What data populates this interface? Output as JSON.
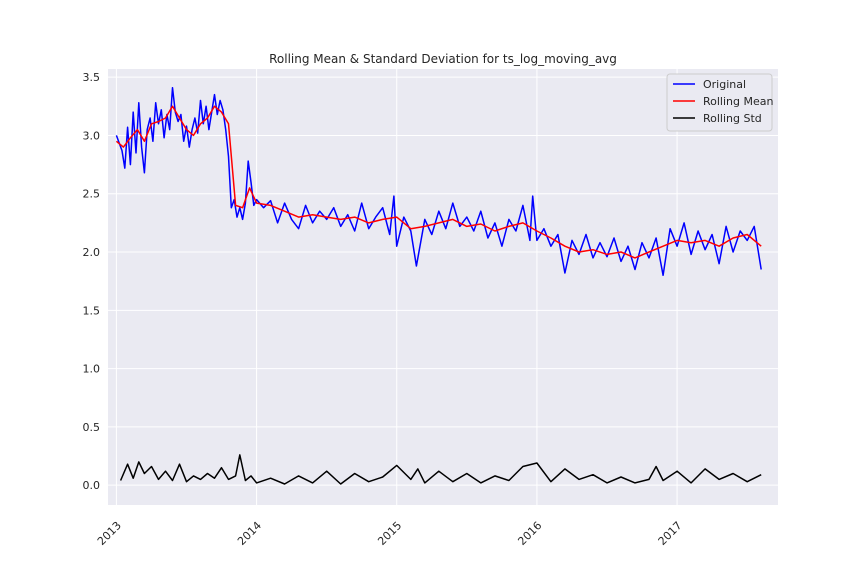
{
  "chart_data": {
    "type": "line",
    "title": "Rolling Mean & Standard Deviation for ts_log_moving_avg",
    "xlabel": "",
    "ylabel": "",
    "xlim": [
      2012.94,
      2017.72
    ],
    "ylim": [
      -0.17,
      3.57
    ],
    "x_ticks": [
      {
        "value": 2013,
        "label": "2013"
      },
      {
        "value": 2014,
        "label": "2014"
      },
      {
        "value": 2015,
        "label": "2015"
      },
      {
        "value": 2016,
        "label": "2016"
      },
      {
        "value": 2017,
        "label": "2017"
      }
    ],
    "y_ticks": [
      {
        "value": 0.0,
        "label": "0.0"
      },
      {
        "value": 0.5,
        "label": "0.5"
      },
      {
        "value": 1.0,
        "label": "1.0"
      },
      {
        "value": 1.5,
        "label": "1.5"
      },
      {
        "value": 2.0,
        "label": "2.0"
      },
      {
        "value": 2.5,
        "label": "2.5"
      },
      {
        "value": 3.0,
        "label": "3.0"
      },
      {
        "value": 3.5,
        "label": "3.5"
      }
    ],
    "grid": true,
    "legend_position": "top-right",
    "background": "#eaeaf2",
    "series": [
      {
        "name": "Original",
        "color": "#0000ff",
        "x": [
          2013.0,
          2013.04,
          2013.06,
          2013.08,
          2013.1,
          2013.12,
          2013.14,
          2013.16,
          2013.18,
          2013.2,
          2013.22,
          2013.24,
          2013.26,
          2013.28,
          2013.3,
          2013.32,
          2013.34,
          2013.36,
          2013.38,
          2013.4,
          2013.42,
          2013.44,
          2013.46,
          2013.48,
          2013.5,
          2013.52,
          2013.54,
          2013.56,
          2013.58,
          2013.6,
          2013.62,
          2013.64,
          2013.66,
          2013.68,
          2013.7,
          2013.72,
          2013.74,
          2013.76,
          2013.78,
          2013.8,
          2013.82,
          2013.84,
          2013.86,
          2013.88,
          2013.9,
          2013.92,
          2013.94,
          2013.96,
          2013.98,
          2014.0,
          2014.05,
          2014.1,
          2014.15,
          2014.2,
          2014.25,
          2014.3,
          2014.35,
          2014.4,
          2014.45,
          2014.5,
          2014.55,
          2014.6,
          2014.65,
          2014.7,
          2014.75,
          2014.8,
          2014.85,
          2014.9,
          2014.95,
          2014.98,
          2015.0,
          2015.05,
          2015.1,
          2015.14,
          2015.2,
          2015.25,
          2015.3,
          2015.35,
          2015.4,
          2015.45,
          2015.5,
          2015.55,
          2015.6,
          2015.65,
          2015.7,
          2015.75,
          2015.8,
          2015.85,
          2015.9,
          2015.95,
          2015.97,
          2016.0,
          2016.05,
          2016.1,
          2016.15,
          2016.2,
          2016.25,
          2016.3,
          2016.35,
          2016.4,
          2016.45,
          2016.5,
          2016.55,
          2016.6,
          2016.65,
          2016.7,
          2016.75,
          2016.8,
          2016.85,
          2016.9,
          2016.95,
          2017.0,
          2017.05,
          2017.1,
          2017.15,
          2017.2,
          2017.25,
          2017.3,
          2017.35,
          2017.4,
          2017.45,
          2017.5,
          2017.55,
          2017.6
        ],
        "y": [
          3.0,
          2.87,
          2.72,
          3.07,
          2.75,
          3.2,
          2.85,
          3.28,
          2.9,
          2.68,
          3.05,
          3.15,
          2.95,
          3.28,
          3.1,
          3.22,
          2.98,
          3.18,
          3.05,
          3.41,
          3.2,
          3.12,
          3.18,
          2.95,
          3.08,
          2.9,
          3.05,
          3.15,
          3.02,
          3.3,
          3.1,
          3.25,
          3.05,
          3.2,
          3.35,
          3.18,
          3.3,
          3.22,
          3.05,
          2.82,
          2.38,
          2.45,
          2.3,
          2.38,
          2.28,
          2.42,
          2.78,
          2.6,
          2.4,
          2.45,
          2.38,
          2.44,
          2.25,
          2.42,
          2.28,
          2.2,
          2.4,
          2.25,
          2.35,
          2.28,
          2.38,
          2.22,
          2.32,
          2.18,
          2.42,
          2.2,
          2.3,
          2.38,
          2.15,
          2.48,
          2.05,
          2.3,
          2.18,
          1.88,
          2.28,
          2.15,
          2.35,
          2.2,
          2.42,
          2.22,
          2.3,
          2.18,
          2.35,
          2.12,
          2.25,
          2.05,
          2.28,
          2.18,
          2.4,
          2.1,
          2.48,
          2.1,
          2.2,
          2.05,
          2.15,
          1.82,
          2.1,
          1.98,
          2.15,
          1.95,
          2.08,
          1.96,
          2.12,
          1.92,
          2.05,
          1.85,
          2.08,
          1.95,
          2.12,
          1.8,
          2.2,
          2.05,
          2.25,
          1.98,
          2.18,
          2.02,
          2.15,
          1.9,
          2.22,
          2.0,
          2.18,
          2.1,
          2.22,
          1.85
        ]
      },
      {
        "name": "Rolling Mean",
        "color": "#ff0000",
        "x": [
          2013.0,
          2013.05,
          2013.1,
          2013.15,
          2013.2,
          2013.25,
          2013.3,
          2013.35,
          2013.4,
          2013.45,
          2013.5,
          2013.55,
          2013.6,
          2013.65,
          2013.7,
          2013.75,
          2013.8,
          2013.85,
          2013.9,
          2013.95,
          2014.0,
          2014.1,
          2014.2,
          2014.3,
          2014.4,
          2014.5,
          2014.6,
          2014.7,
          2014.8,
          2014.9,
          2015.0,
          2015.1,
          2015.2,
          2015.3,
          2015.4,
          2015.5,
          2015.6,
          2015.7,
          2015.8,
          2015.9,
          2016.0,
          2016.1,
          2016.2,
          2016.3,
          2016.4,
          2016.5,
          2016.6,
          2016.7,
          2016.8,
          2016.9,
          2017.0,
          2017.1,
          2017.2,
          2017.3,
          2017.4,
          2017.5,
          2017.6
        ],
        "y": [
          2.95,
          2.9,
          2.98,
          3.05,
          2.95,
          3.1,
          3.12,
          3.15,
          3.25,
          3.15,
          3.05,
          3.0,
          3.1,
          3.15,
          3.25,
          3.2,
          3.1,
          2.4,
          2.38,
          2.55,
          2.42,
          2.4,
          2.35,
          2.3,
          2.32,
          2.3,
          2.28,
          2.3,
          2.25,
          2.28,
          2.3,
          2.2,
          2.22,
          2.25,
          2.28,
          2.22,
          2.24,
          2.18,
          2.22,
          2.25,
          2.18,
          2.12,
          2.05,
          2.0,
          2.02,
          1.98,
          2.0,
          1.95,
          2.0,
          2.05,
          2.1,
          2.08,
          2.1,
          2.05,
          2.12,
          2.15,
          2.05
        ]
      },
      {
        "name": "Rolling Std",
        "color": "#000000",
        "x": [
          2013.03,
          2013.08,
          2013.12,
          2013.16,
          2013.2,
          2013.25,
          2013.3,
          2013.35,
          2013.4,
          2013.45,
          2013.5,
          2013.55,
          2013.6,
          2013.65,
          2013.7,
          2013.75,
          2013.8,
          2013.85,
          2013.88,
          2013.92,
          2013.96,
          2014.0,
          2014.1,
          2014.2,
          2014.3,
          2014.4,
          2014.5,
          2014.6,
          2014.7,
          2014.8,
          2014.9,
          2015.0,
          2015.1,
          2015.15,
          2015.2,
          2015.3,
          2015.4,
          2015.5,
          2015.6,
          2015.7,
          2015.8,
          2015.9,
          2016.0,
          2016.1,
          2016.2,
          2016.3,
          2016.4,
          2016.5,
          2016.6,
          2016.7,
          2016.8,
          2016.85,
          2016.9,
          2017.0,
          2017.1,
          2017.2,
          2017.3,
          2017.4,
          2017.5,
          2017.6
        ],
        "y": [
          0.04,
          0.18,
          0.06,
          0.2,
          0.1,
          0.16,
          0.05,
          0.12,
          0.04,
          0.18,
          0.03,
          0.08,
          0.05,
          0.1,
          0.06,
          0.15,
          0.05,
          0.08,
          0.26,
          0.04,
          0.08,
          0.02,
          0.06,
          0.01,
          0.08,
          0.02,
          0.12,
          0.01,
          0.1,
          0.03,
          0.07,
          0.17,
          0.05,
          0.14,
          0.02,
          0.12,
          0.03,
          0.1,
          0.02,
          0.08,
          0.04,
          0.16,
          0.19,
          0.03,
          0.14,
          0.05,
          0.09,
          0.02,
          0.07,
          0.02,
          0.05,
          0.16,
          0.04,
          0.12,
          0.02,
          0.14,
          0.05,
          0.1,
          0.03,
          0.09
        ]
      }
    ]
  }
}
